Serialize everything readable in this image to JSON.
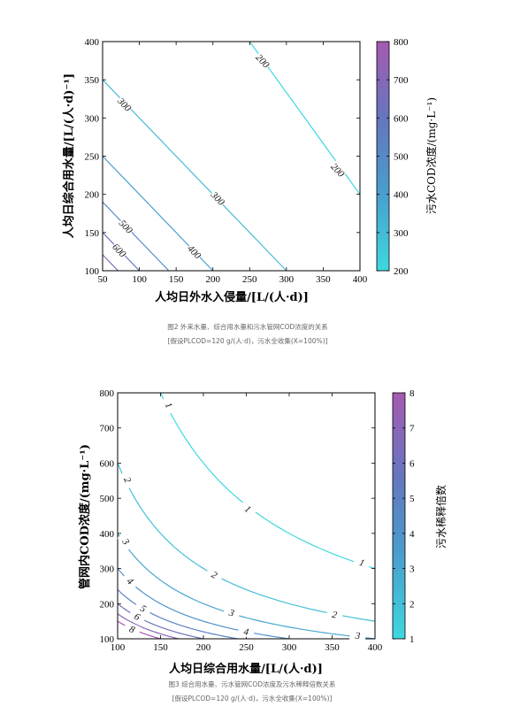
{
  "chart_data": [
    {
      "type": "contour",
      "xlabel": "人均日外水入侵量/[L/(人·d)]",
      "ylabel": "人均日综合用水量/[L/(人·d)⁻¹]",
      "xlim": [
        50,
        400
      ],
      "ylim": [
        100,
        400
      ],
      "xticks": [
        "50",
        "100",
        "150",
        "200",
        "250",
        "300",
        "350",
        "400"
      ],
      "yticks": [
        "100",
        "150",
        "200",
        "250",
        "300",
        "350",
        "400"
      ],
      "colorbar": {
        "label": "污水COD浓度/(mg·L⁻¹)",
        "range": [
          200,
          800
        ],
        "ticks": [
          "200",
          "300",
          "400",
          "500",
          "600",
          "700",
          "800"
        ]
      },
      "levels": [
        {
          "value": 200,
          "label": "200",
          "x": [
            250,
            400
          ],
          "y": [
            400,
            200
          ]
        },
        {
          "value": 300,
          "label": "300",
          "x": [
            50,
            300
          ],
          "y": [
            350,
            100
          ]
        },
        {
          "value": 400,
          "label": "400",
          "x": [
            50,
            200
          ],
          "y": [
            250,
            100
          ]
        },
        {
          "value": 500,
          "label": "500",
          "x": [
            50,
            140
          ],
          "y": [
            190,
            100
          ]
        },
        {
          "value": 600,
          "label": "600",
          "x": [
            50,
            100
          ],
          "y": [
            150,
            100
          ]
        },
        {
          "value": 700,
          "label": "",
          "x": [
            50,
            71
          ],
          "y": [
            121,
            100
          ]
        }
      ],
      "label_positions": [
        {
          "label": "200",
          "x": 268,
          "y": 375
        },
        {
          "label": "200",
          "x": 370,
          "y": 232
        },
        {
          "label": "300",
          "x": 80,
          "y": 318
        },
        {
          "label": "300",
          "x": 207,
          "y": 195
        },
        {
          "label": "400",
          "x": 175,
          "y": 125
        },
        {
          "label": "500",
          "x": 82,
          "y": 158
        },
        {
          "label": "600",
          "x": 73,
          "y": 127
        }
      ],
      "caption": [
        "图2 外来水量、综合用水量和污水管网COD浓度的关系",
        "[假设PLCOD=120 g/(人·d)，污水全收集(X=100%)]"
      ]
    },
    {
      "type": "contour",
      "xlabel": "人均日综合用水量/[L/(人·d)]",
      "ylabel": "管网内COD浓度/(mg·L⁻¹)",
      "xlim": [
        100,
        400
      ],
      "ylim": [
        100,
        800
      ],
      "xticks": [
        "100",
        "150",
        "200",
        "250",
        "300",
        "350",
        "400"
      ],
      "yticks": [
        "100",
        "200",
        "300",
        "400",
        "500",
        "600",
        "700",
        "800"
      ],
      "colorbar": {
        "label": "污水稀释倍数",
        "range": [
          1,
          8
        ],
        "ticks": [
          "1",
          "2",
          "3",
          "4",
          "5",
          "6",
          "7",
          "8"
        ]
      },
      "levels": [
        {
          "value": 1,
          "label": "1",
          "x": [
            150,
            400
          ],
          "y": [
            800,
            300
          ]
        },
        {
          "value": 2,
          "label": "2",
          "x": [
            100,
            400
          ],
          "y": [
            600,
            150
          ]
        },
        {
          "value": 3,
          "label": "3",
          "x": [
            100,
            400
          ],
          "y": [
            400,
            100
          ]
        },
        {
          "value": 4,
          "label": "4",
          "x": [
            100,
            300
          ],
          "y": [
            300,
            100
          ]
        },
        {
          "value": 5,
          "label": "5",
          "x": [
            100,
            240
          ],
          "y": [
            240,
            100
          ]
        },
        {
          "value": 6,
          "label": "6",
          "x": [
            100,
            200
          ],
          "y": [
            200,
            100
          ]
        },
        {
          "value": 7,
          "label": "",
          "x": [
            100,
            171
          ],
          "y": [
            171,
            100
          ]
        },
        {
          "value": 8,
          "label": "8",
          "x": [
            100,
            150
          ],
          "y": [
            150,
            100
          ]
        }
      ],
      "label_positions": [
        {
          "label": "1",
          "x": 160,
          "y": 765
        },
        {
          "label": "1",
          "x": 252,
          "y": 470
        },
        {
          "label": "1",
          "x": 385,
          "y": 318
        },
        {
          "label": "2",
          "x": 112,
          "y": 553
        },
        {
          "label": "2",
          "x": 213,
          "y": 283
        },
        {
          "label": "2",
          "x": 353,
          "y": 170
        },
        {
          "label": "3",
          "x": 110,
          "y": 377
        },
        {
          "label": "3",
          "x": 233,
          "y": 175
        },
        {
          "label": "3",
          "x": 380,
          "y": 110
        },
        {
          "label": "4",
          "x": 115,
          "y": 265
        },
        {
          "label": "4",
          "x": 250,
          "y": 121
        },
        {
          "label": "5",
          "x": 130,
          "y": 187
        },
        {
          "label": "6",
          "x": 123,
          "y": 164
        },
        {
          "label": "8",
          "x": 117,
          "y": 128
        }
      ],
      "caption": [
        "图3 综合用水量、污水管网COD浓度及污水稀释倍数关系",
        "[假设PLCOD=120 g/(人·d)，污水全收集(X=100%)]"
      ]
    }
  ]
}
